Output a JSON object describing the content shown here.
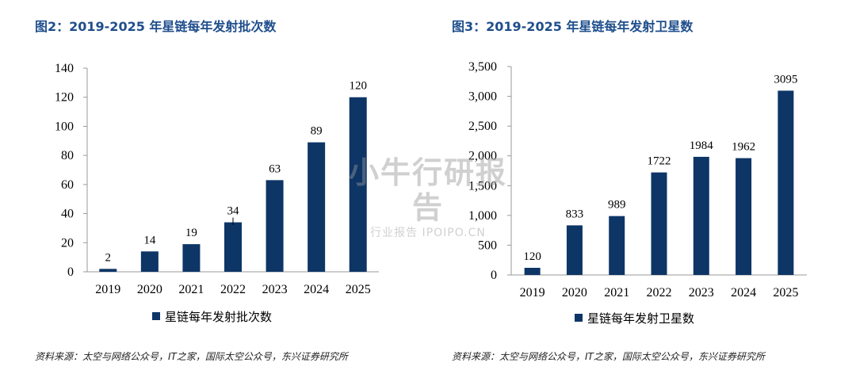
{
  "colors": {
    "bar": "#0d3566",
    "title": "#1f4e8c",
    "axis": "#9a9a9a"
  },
  "watermark": {
    "main": "小牛行研报告",
    "sub": "行业报告 IPOIPO.CN"
  },
  "chart_data": [
    {
      "type": "bar",
      "title": "图2：2019-2025 年星链每年发射批次数",
      "categories": [
        "2019",
        "2020",
        "2021",
        "2022",
        "2023",
        "2024",
        "2025"
      ],
      "series": [
        {
          "name": "星链每年发射批次数",
          "values": [
            2,
            14,
            19,
            34,
            63,
            89,
            120
          ],
          "data_labels": [
            "2",
            "14",
            "19",
            "34",
            "63",
            "89",
            "120"
          ]
        }
      ],
      "ylim": [
        0,
        140
      ],
      "yticks": [
        0,
        20,
        40,
        60,
        80,
        100,
        120,
        140
      ],
      "ytick_labels": [
        "0",
        "20",
        "40",
        "60",
        "80",
        "100",
        "120",
        "140"
      ],
      "grid": false,
      "legend": "bottom",
      "source": "资料来源：太空与网络公众号，IT之家，国际太空公众号，东兴证券研究所"
    },
    {
      "type": "bar",
      "title": "图3：2019-2025 年星链每年发射卫星数",
      "categories": [
        "2019",
        "2020",
        "2021",
        "2022",
        "2023",
        "2024",
        "2025"
      ],
      "series": [
        {
          "name": "星链每年发射卫星数",
          "values": [
            120,
            833,
            989,
            1722,
            1984,
            1962,
            3095
          ],
          "data_labels": [
            "120",
            "833",
            "989",
            "1722",
            "1984",
            "1962",
            "3095"
          ]
        }
      ],
      "ylim": [
        0,
        3500
      ],
      "yticks": [
        0,
        500,
        1000,
        1500,
        2000,
        2500,
        3000,
        3500
      ],
      "ytick_labels": [
        "0",
        "500",
        "1,000",
        "1,500",
        "2,000",
        "2,500",
        "3,000",
        "3,500"
      ],
      "grid": false,
      "legend": "bottom",
      "source": "资料来源：太空与网络公众号，IT之家，国际太空公众号，东兴证券研究所"
    }
  ]
}
